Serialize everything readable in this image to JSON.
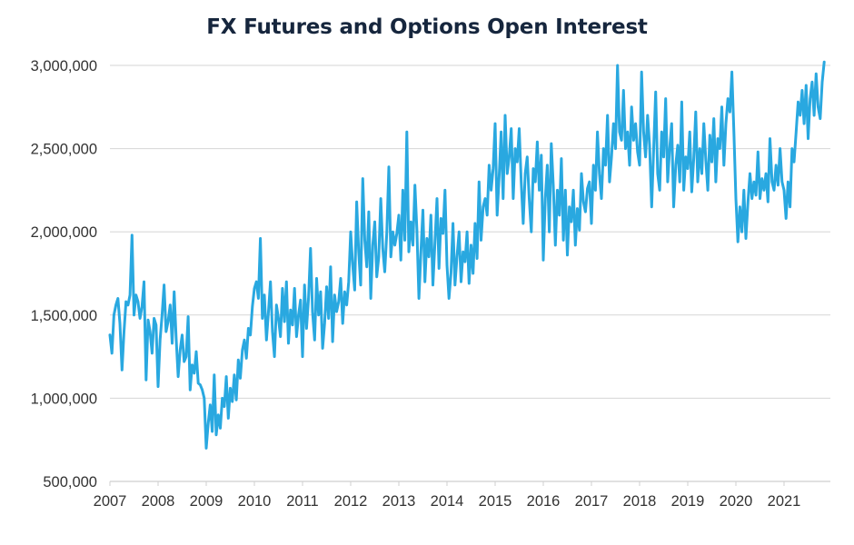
{
  "chart_data": {
    "type": "line",
    "title": "FX Futures and Options Open Interest",
    "xlabel": "",
    "ylabel": "",
    "grid": true,
    "legend": "none",
    "line_color": "#29a8e0",
    "ylim": [
      500000,
      3000000
    ],
    "xlim": [
      2007,
      2021.95
    ],
    "y_ticks": [
      500000,
      1000000,
      1500000,
      2000000,
      2500000,
      3000000
    ],
    "y_tick_labels": [
      "500,000",
      "1,000,000",
      "1,500,000",
      "2,000,000",
      "2,500,000",
      "3,000,000"
    ],
    "x_ticks": [
      2007,
      2008,
      2009,
      2010,
      2011,
      2012,
      2013,
      2014,
      2015,
      2016,
      2017,
      2018,
      2019,
      2020,
      2021
    ],
    "x_tick_labels": [
      "2007",
      "2008",
      "2009",
      "2010",
      "2011",
      "2012",
      "2013",
      "2014",
      "2015",
      "2016",
      "2017",
      "2018",
      "2019",
      "2020",
      "2021"
    ],
    "series": [
      {
        "name": "FX Futures and Options Open Interest",
        "start_year": 2007,
        "points_per_year": 24,
        "values": [
          1380000,
          1270000,
          1500000,
          1560000,
          1600000,
          1450000,
          1170000,
          1400000,
          1580000,
          1560000,
          1620000,
          1980000,
          1500000,
          1620000,
          1580000,
          1480000,
          1550000,
          1700000,
          1110000,
          1470000,
          1400000,
          1270000,
          1480000,
          1440000,
          1070000,
          1350000,
          1500000,
          1680000,
          1400000,
          1460000,
          1560000,
          1330000,
          1640000,
          1360000,
          1130000,
          1290000,
          1380000,
          1220000,
          1250000,
          1490000,
          1050000,
          1200000,
          1150000,
          1280000,
          1090000,
          1080000,
          1050000,
          1000000,
          700000,
          850000,
          960000,
          800000,
          1140000,
          780000,
          900000,
          820000,
          1000000,
          950000,
          1130000,
          880000,
          1060000,
          980000,
          1140000,
          990000,
          1230000,
          1120000,
          1290000,
          1350000,
          1240000,
          1420000,
          1380000,
          1550000,
          1660000,
          1700000,
          1600000,
          1960000,
          1480000,
          1620000,
          1350000,
          1520000,
          1700000,
          1400000,
          1250000,
          1560000,
          1480000,
          1370000,
          1660000,
          1460000,
          1700000,
          1330000,
          1530000,
          1440000,
          1660000,
          1370000,
          1500000,
          1590000,
          1250000,
          1680000,
          1420000,
          1600000,
          1900000,
          1520000,
          1350000,
          1720000,
          1500000,
          1640000,
          1300000,
          1450000,
          1670000,
          1480000,
          1790000,
          1340000,
          1620000,
          1520000,
          1580000,
          1720000,
          1450000,
          1640000,
          1560000,
          1700000,
          2000000,
          1800000,
          1650000,
          2180000,
          1880000,
          1680000,
          2320000,
          1950000,
          1790000,
          2120000,
          1600000,
          1920000,
          2060000,
          1730000,
          1850000,
          2200000,
          1900000,
          1760000,
          2000000,
          2390000,
          1850000,
          2000000,
          1920000,
          1990000,
          2100000,
          1830000,
          2250000,
          1950000,
          2600000,
          1880000,
          2060000,
          1920000,
          2280000,
          2010000,
          1600000,
          1880000,
          2130000,
          1700000,
          1960000,
          1850000,
          2100000,
          1680000,
          1940000,
          2200000,
          1780000,
          2080000,
          1990000,
          2250000,
          1800000,
          1600000,
          1750000,
          2050000,
          1680000,
          1850000,
          2000000,
          1700000,
          1880000,
          1820000,
          2000000,
          1690000,
          1920000,
          1750000,
          2050000,
          1840000,
          2300000,
          1950000,
          2150000,
          2200000,
          2100000,
          2400000,
          2250000,
          2380000,
          2650000,
          2100000,
          2330000,
          2600000,
          2200000,
          2700000,
          2350000,
          2450000,
          2620000,
          2200000,
          2500000,
          2420000,
          2620000,
          2300000,
          2050000,
          2350000,
          2450000,
          2200000,
          2000000,
          2380000,
          2300000,
          2540000,
          2250000,
          2460000,
          1830000,
          2200000,
          2400000,
          2000000,
          2530000,
          2280000,
          1920000,
          2250000,
          2100000,
          2440000,
          1950000,
          2250000,
          1860000,
          2150000,
          2060000,
          2250000,
          1920000,
          2140000,
          2010000,
          2350000,
          2180000,
          2120000,
          2260000,
          2300000,
          2050000,
          2400000,
          2250000,
          2600000,
          2350000,
          2200000,
          2500000,
          2400000,
          2700000,
          2300000,
          2450000,
          2650000,
          2500000,
          3000000,
          2600000,
          2550000,
          2850000,
          2500000,
          2600000,
          2400000,
          2750000,
          2550000,
          2650000,
          2480000,
          2400000,
          2960000,
          2600000,
          2450000,
          2700000,
          2520000,
          2150000,
          2500000,
          2840000,
          2350000,
          2250000,
          2600000,
          2450000,
          2800000,
          2300000,
          2500000,
          2650000,
          2150000,
          2400000,
          2520000,
          2300000,
          2780000,
          2250000,
          2450000,
          2380000,
          2600000,
          2240000,
          2440000,
          2720000,
          2300000,
          2500000,
          2350000,
          2650000,
          2430000,
          2250000,
          2580000,
          2420000,
          2680000,
          2300000,
          2560000,
          2500000,
          2750000,
          2400000,
          2650000,
          2800000,
          2720000,
          2960000,
          2600000,
          2200000,
          1940000,
          2150000,
          2000000,
          2250000,
          1960000,
          2180000,
          2350000,
          2200000,
          2300000,
          2220000,
          2480000,
          2200000,
          2320000,
          2250000,
          2350000,
          2180000,
          2560000,
          2300000,
          2250000,
          2400000,
          2280000,
          2500000,
          2300000,
          2250000,
          2080000,
          2300000,
          2150000,
          2500000,
          2420000,
          2600000,
          2780000,
          2700000,
          2850000,
          2650000,
          2880000,
          2560000,
          2800000,
          2900000,
          2700000,
          2950000,
          2750000,
          2680000,
          2900000,
          3020000
        ]
      }
    ]
  }
}
